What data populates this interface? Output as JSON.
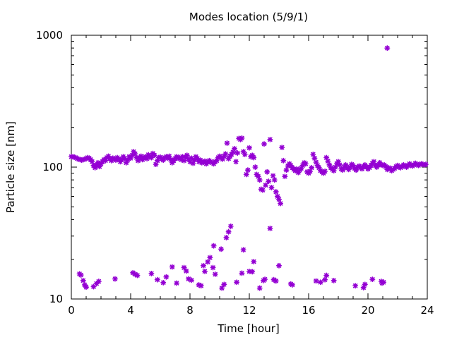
{
  "chart_data": {
    "type": "scatter",
    "title": "Modes location (5/9/1)",
    "xlabel": "Time [hour]",
    "ylabel": "Particle size [nm]",
    "xlim": [
      0,
      24
    ],
    "ylim": [
      10,
      1000
    ],
    "y_scale": "log",
    "grid": false,
    "legend": "none",
    "marker_color": "#9400d3",
    "marker": "asterisk",
    "x_ticks": [
      0,
      4,
      8,
      12,
      16,
      20,
      24
    ],
    "x_tick_labels": [
      "0",
      "4",
      "8",
      "12",
      "16",
      "20",
      "24"
    ],
    "y_ticks": [
      10,
      100,
      1000
    ],
    "y_tick_labels": [
      "10",
      "100",
      "1000"
    ],
    "series": [
      {
        "points": [
          [
            0.0,
            120
          ],
          [
            0.1,
            120
          ],
          [
            0.2,
            119
          ],
          [
            0.3,
            118
          ],
          [
            0.4,
            116
          ],
          [
            0.5,
            115
          ],
          [
            0.6,
            114
          ],
          [
            0.7,
            113
          ],
          [
            0.8,
            114
          ],
          [
            0.9,
            115
          ],
          [
            1.0,
            116
          ],
          [
            1.1,
            118
          ],
          [
            1.2,
            117
          ],
          [
            1.3,
            114
          ],
          [
            1.4,
            110
          ],
          [
            1.5,
            103
          ],
          [
            1.6,
            99
          ],
          [
            1.7,
            104
          ],
          [
            1.8,
            108
          ],
          [
            1.9,
            101
          ],
          [
            2.0,
            106
          ],
          [
            2.1,
            110
          ],
          [
            2.2,
            114
          ],
          [
            2.3,
            112
          ],
          [
            2.4,
            118
          ],
          [
            2.5,
            121
          ],
          [
            2.6,
            116
          ],
          [
            2.7,
            112
          ],
          [
            2.8,
            117
          ],
          [
            2.9,
            115
          ],
          [
            3.0,
            113
          ],
          [
            3.1,
            118
          ],
          [
            3.2,
            115
          ],
          [
            3.3,
            110
          ],
          [
            3.4,
            114
          ],
          [
            3.5,
            120
          ],
          [
            3.6,
            116
          ],
          [
            3.7,
            108
          ],
          [
            3.8,
            113
          ],
          [
            3.9,
            120
          ],
          [
            4.0,
            117
          ],
          [
            4.1,
            123
          ],
          [
            4.2,
            131
          ],
          [
            4.3,
            126
          ],
          [
            4.4,
            118
          ],
          [
            4.5,
            112
          ],
          [
            4.6,
            118
          ],
          [
            4.7,
            121
          ],
          [
            4.8,
            114
          ],
          [
            4.9,
            118
          ],
          [
            5.0,
            120
          ],
          [
            5.1,
            116
          ],
          [
            5.2,
            124
          ],
          [
            5.3,
            121
          ],
          [
            5.4,
            118
          ],
          [
            5.5,
            127
          ],
          [
            5.6,
            123
          ],
          [
            5.7,
            105
          ],
          [
            5.8,
            112
          ],
          [
            5.9,
            118
          ],
          [
            6.0,
            119
          ],
          [
            6.1,
            115
          ],
          [
            6.2,
            113
          ],
          [
            6.3,
            118
          ],
          [
            6.4,
            120
          ],
          [
            6.5,
            117
          ],
          [
            6.6,
            121
          ],
          [
            6.7,
            114
          ],
          [
            6.8,
            108
          ],
          [
            6.9,
            112
          ],
          [
            7.0,
            116
          ],
          [
            7.1,
            120
          ],
          [
            7.2,
            117
          ],
          [
            7.3,
            118
          ],
          [
            7.4,
            114
          ],
          [
            7.5,
            120
          ],
          [
            7.6,
            112
          ],
          [
            7.7,
            119
          ],
          [
            7.8,
            123
          ],
          [
            7.9,
            115
          ],
          [
            8.0,
            110
          ],
          [
            8.1,
            117
          ],
          [
            8.2,
            107
          ],
          [
            8.3,
            113
          ],
          [
            8.4,
            120
          ],
          [
            8.5,
            116
          ],
          [
            8.6,
            110
          ],
          [
            8.7,
            113
          ],
          [
            8.8,
            108
          ],
          [
            8.9,
            109
          ],
          [
            9.0,
            111
          ],
          [
            9.1,
            106
          ],
          [
            9.2,
            109
          ],
          [
            9.3,
            112
          ],
          [
            9.4,
            110
          ],
          [
            9.5,
            108
          ],
          [
            9.6,
            106
          ],
          [
            9.7,
            110
          ],
          [
            9.8,
            112
          ],
          [
            9.9,
            118
          ],
          [
            10.0,
            121
          ],
          [
            10.1,
            118
          ],
          [
            10.2,
            115
          ],
          [
            10.3,
            121
          ],
          [
            10.4,
            126
          ],
          [
            10.5,
            152
          ],
          [
            10.6,
            116
          ],
          [
            10.7,
            121
          ],
          [
            10.8,
            125
          ],
          [
            10.9,
            130
          ],
          [
            11.0,
            138
          ],
          [
            11.1,
            110
          ],
          [
            11.2,
            128
          ],
          [
            11.3,
            165
          ],
          [
            11.4,
            162
          ],
          [
            11.5,
            166
          ],
          [
            11.6,
            131
          ],
          [
            11.7,
            125
          ],
          [
            11.8,
            88
          ],
          [
            11.9,
            95
          ],
          [
            12.0,
            140
          ],
          [
            12.1,
            120
          ],
          [
            12.2,
            123
          ],
          [
            12.3,
            118
          ],
          [
            12.4,
            100
          ],
          [
            12.5,
            88
          ],
          [
            12.6,
            85
          ],
          [
            12.7,
            80
          ],
          [
            12.8,
            68
          ],
          [
            12.9,
            67
          ],
          [
            13.0,
            150
          ],
          [
            13.1,
            73
          ],
          [
            13.2,
            92
          ],
          [
            13.3,
            78
          ],
          [
            13.4,
            162
          ],
          [
            13.5,
            70
          ],
          [
            13.6,
            86
          ],
          [
            13.7,
            80
          ],
          [
            13.8,
            65
          ],
          [
            13.9,
            60
          ],
          [
            14.0,
            57
          ],
          [
            14.1,
            53
          ],
          [
            14.2,
            141
          ],
          [
            14.3,
            112
          ],
          [
            14.4,
            85
          ],
          [
            14.5,
            95
          ],
          [
            14.6,
            102
          ],
          [
            14.7,
            106
          ],
          [
            14.8,
            103
          ],
          [
            14.9,
            99
          ],
          [
            15.0,
            96
          ],
          [
            15.1,
            94
          ],
          [
            15.2,
            97
          ],
          [
            15.3,
            91
          ],
          [
            15.4,
            95
          ],
          [
            15.5,
            98
          ],
          [
            15.6,
            103
          ],
          [
            15.7,
            108
          ],
          [
            15.8,
            106
          ],
          [
            15.9,
            92
          ],
          [
            16.0,
            90
          ],
          [
            16.1,
            93
          ],
          [
            16.2,
            99
          ],
          [
            16.3,
            125
          ],
          [
            16.4,
            117
          ],
          [
            16.5,
            109
          ],
          [
            16.6,
            103
          ],
          [
            16.7,
            99
          ],
          [
            16.8,
            94
          ],
          [
            16.9,
            92
          ],
          [
            17.0,
            90
          ],
          [
            17.1,
            93
          ],
          [
            17.2,
            118
          ],
          [
            17.3,
            111
          ],
          [
            17.4,
            104
          ],
          [
            17.5,
            99
          ],
          [
            17.6,
            96
          ],
          [
            17.7,
            94
          ],
          [
            17.8,
            100
          ],
          [
            17.9,
            106
          ],
          [
            18.0,
            110
          ],
          [
            18.1,
            104
          ],
          [
            18.2,
            97
          ],
          [
            18.3,
            95
          ],
          [
            18.4,
            100
          ],
          [
            18.5,
            104
          ],
          [
            18.6,
            99
          ],
          [
            18.7,
            96
          ],
          [
            18.8,
            100
          ],
          [
            18.9,
            105
          ],
          [
            19.0,
            103
          ],
          [
            19.1,
            98
          ],
          [
            19.2,
            95
          ],
          [
            19.3,
            100
          ],
          [
            19.4,
            102
          ],
          [
            19.5,
            99
          ],
          [
            19.6,
            97
          ],
          [
            19.7,
            101
          ],
          [
            19.8,
            104
          ],
          [
            19.9,
            100
          ],
          [
            20.0,
            97
          ],
          [
            20.1,
            99
          ],
          [
            20.2,
            103
          ],
          [
            20.3,
            107
          ],
          [
            20.4,
            110
          ],
          [
            20.5,
            103
          ],
          [
            20.6,
            100
          ],
          [
            20.7,
            104
          ],
          [
            20.8,
            108
          ],
          [
            20.9,
            104
          ],
          [
            21.0,
            103
          ],
          [
            21.1,
            104
          ],
          [
            21.2,
            101
          ],
          [
            21.3,
            96
          ],
          [
            21.4,
            99
          ],
          [
            21.5,
            98
          ],
          [
            21.6,
            94
          ],
          [
            21.7,
            96
          ],
          [
            21.8,
            98
          ],
          [
            21.9,
            101
          ],
          [
            22.0,
            103
          ],
          [
            22.1,
            100
          ],
          [
            22.2,
            99
          ],
          [
            22.3,
            101
          ],
          [
            22.4,
            104
          ],
          [
            22.5,
            102
          ],
          [
            22.6,
            100
          ],
          [
            22.7,
            103
          ],
          [
            22.8,
            106
          ],
          [
            22.9,
            104
          ],
          [
            23.0,
            102
          ],
          [
            23.1,
            104
          ],
          [
            23.2,
            107
          ],
          [
            23.3,
            105
          ],
          [
            23.4,
            103
          ],
          [
            23.5,
            105
          ],
          [
            23.6,
            106
          ],
          [
            23.7,
            105
          ],
          [
            23.8,
            104
          ],
          [
            23.9,
            105
          ],
          [
            0.55,
            15.5
          ],
          [
            0.65,
            15.2
          ],
          [
            0.8,
            13.8
          ],
          [
            0.9,
            12.8
          ],
          [
            1.0,
            12.3
          ],
          [
            1.5,
            12.4
          ],
          [
            1.7,
            13.1
          ],
          [
            1.85,
            13.6
          ],
          [
            2.95,
            14.2
          ],
          [
            4.15,
            15.8
          ],
          [
            4.3,
            15.4
          ],
          [
            4.45,
            15.1
          ],
          [
            5.4,
            15.6
          ],
          [
            5.8,
            14.0
          ],
          [
            6.2,
            13.3
          ],
          [
            6.4,
            14.7
          ],
          [
            6.8,
            17.5
          ],
          [
            7.1,
            13.2
          ],
          [
            7.6,
            17.3
          ],
          [
            7.75,
            16.3
          ],
          [
            7.9,
            14.2
          ],
          [
            8.1,
            13.9
          ],
          [
            8.6,
            12.8
          ],
          [
            8.75,
            12.6
          ],
          [
            8.9,
            17.9
          ],
          [
            9.0,
            16.2
          ],
          [
            9.2,
            19.1
          ],
          [
            9.35,
            20.6
          ],
          [
            9.55,
            17.3
          ],
          [
            9.6,
            25.3
          ],
          [
            9.7,
            15.4
          ],
          [
            10.1,
            23.9
          ],
          [
            10.15,
            12.1
          ],
          [
            10.3,
            12.9
          ],
          [
            10.45,
            29.2
          ],
          [
            10.6,
            32.3
          ],
          [
            10.75,
            35.6
          ],
          [
            11.15,
            13.4
          ],
          [
            11.5,
            15.7
          ],
          [
            11.6,
            23.6
          ],
          [
            12.0,
            16.2
          ],
          [
            12.2,
            16.1
          ],
          [
            12.3,
            19.2
          ],
          [
            12.7,
            12.1
          ],
          [
            12.95,
            13.8
          ],
          [
            13.05,
            14.1
          ],
          [
            13.4,
            34.3
          ],
          [
            13.65,
            14.0
          ],
          [
            13.8,
            13.7
          ],
          [
            14.0,
            17.9
          ],
          [
            14.8,
            13.0
          ],
          [
            14.9,
            12.8
          ],
          [
            16.5,
            13.7
          ],
          [
            16.8,
            13.4
          ],
          [
            17.1,
            14.0
          ],
          [
            17.2,
            15.1
          ],
          [
            17.7,
            13.8
          ],
          [
            19.15,
            12.6
          ],
          [
            19.7,
            12.2
          ],
          [
            19.8,
            12.9
          ],
          [
            20.3,
            14.1
          ],
          [
            20.9,
            13.6
          ],
          [
            20.95,
            13.2
          ],
          [
            21.05,
            13.4
          ],
          [
            21.3,
            800
          ]
        ]
      }
    ]
  }
}
